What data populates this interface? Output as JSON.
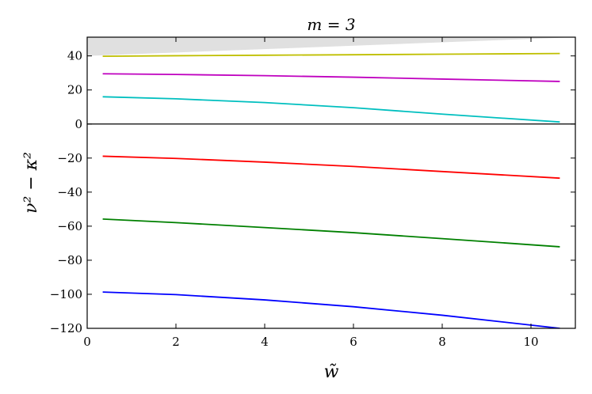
{
  "chart_data": {
    "type": "line",
    "title": "m = 3",
    "xlabel": "w̃",
    "ylabel": "ν² − κ²",
    "xlim": [
      0,
      11
    ],
    "ylim": [
      -120,
      51
    ],
    "xticks": [
      0,
      2,
      4,
      6,
      8,
      10
    ],
    "yticks": [
      -120,
      -100,
      -80,
      -60,
      -40,
      -20,
      0,
      20,
      40
    ],
    "xtick_labels": [
      "0",
      "2",
      "4",
      "6",
      "8",
      "10"
    ],
    "ytick_labels": [
      "−120",
      "−100",
      "−80",
      "−60",
      "−40",
      "−20",
      "0",
      "20",
      "40"
    ],
    "grid": false,
    "zero_line": true,
    "shaded_region": {
      "color": "#e0e0e0",
      "x": [
        0,
        11
      ],
      "lower": [
        40,
        51
      ],
      "upper": [
        51,
        51
      ]
    },
    "series": [
      {
        "color": "#bfbf00",
        "x": [
          0.35,
          2,
          4,
          6,
          8,
          10.65
        ],
        "values": [
          39.8,
          40.1,
          40.4,
          40.7,
          41.0,
          41.4
        ]
      },
      {
        "color": "#bf00bf",
        "x": [
          0.35,
          2,
          4,
          6,
          8,
          10.65
        ],
        "values": [
          29.5,
          29.1,
          28.4,
          27.5,
          26.4,
          25.0
        ]
      },
      {
        "color": "#00bfbf",
        "x": [
          0.35,
          2,
          4,
          6,
          8,
          10.65
        ],
        "values": [
          16.0,
          14.8,
          12.6,
          9.6,
          5.8,
          1.2
        ]
      },
      {
        "color": "#ff0000",
        "x": [
          0.35,
          2,
          4,
          6,
          8,
          10.65
        ],
        "values": [
          -18.9,
          -20.2,
          -22.4,
          -24.9,
          -27.9,
          -31.8
        ]
      },
      {
        "color": "#008000",
        "x": [
          0.35,
          2,
          4,
          6,
          8,
          10.65
        ],
        "values": [
          -55.8,
          -57.9,
          -60.8,
          -63.8,
          -67.3,
          -72.1
        ]
      },
      {
        "color": "#0000ff",
        "x": [
          0.35,
          2,
          4,
          6,
          8,
          10.65
        ],
        "values": [
          -98.7,
          -100.2,
          -103.3,
          -107.3,
          -112.3,
          -120.0
        ]
      }
    ]
  }
}
